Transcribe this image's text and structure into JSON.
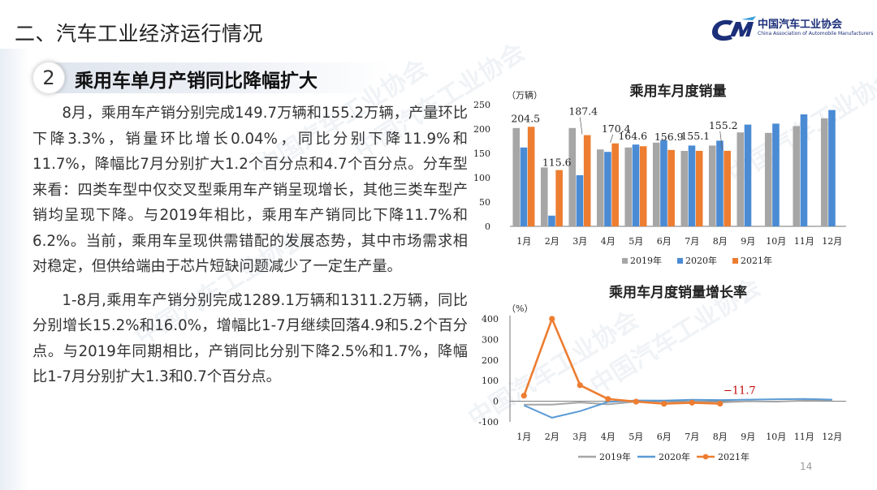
{
  "header": {
    "section_title": "二、汽车工业经济运行情况",
    "logo_cn": "中国汽车工业协会",
    "logo_en": "China Association of Automobile Manufacturers"
  },
  "subhead": {
    "number": "2",
    "title": "乘用车单月产销同比降幅扩大"
  },
  "body": {
    "para1": "8月，乘用车产销分别完成149.7万辆和155.2万辆，产量环比下降3.3%，销量环比增长0.04%，同比分别下降11.9%和11.7%，降幅比7月分别扩大1.2个百分点和4.7个百分点。分车型来看：四类车型中仅交叉型乘用车产销呈现增长，其他三类车型产销均呈现下降。与2019年相比，乘用车产销同比下降11.7%和6.2%。当前，乘用车呈现供需错配的发展态势，其中市场需求相对稳定，但供给端由于芯片短缺问题减少了一定生产量。",
    "para2": "1-8月,乘用车产销分别完成1289.1万辆和1311.2万辆，同比分别增长15.2%和16.0%，增幅比1-7月继续回落4.9和5.2个百分点。与2019年同期相比，产销同比分别下降2.5%和1.7%，降幅比1-7月分别扩大1.3和0.7个百分点。"
  },
  "watermark_text": "中国汽车工业协会",
  "page_number": "14",
  "chart_data": [
    {
      "type": "bar",
      "title": "乘用车月度销量",
      "ylabel": "（万辆）",
      "ylim": [
        0,
        250
      ],
      "yticks": [
        0,
        50,
        100,
        150,
        200,
        250
      ],
      "categories": [
        "1月",
        "2月",
        "3月",
        "4月",
        "5月",
        "6月",
        "7月",
        "8月",
        "9月",
        "10月",
        "11月",
        "12月"
      ],
      "series": [
        {
          "name": "2019年",
          "color": "#a6a6a6",
          "values": [
            202,
            121,
            202,
            158,
            162,
            172,
            155,
            166,
            193,
            192,
            206,
            222
          ]
        },
        {
          "name": "2020年",
          "color": "#4a8bd4",
          "values": [
            162,
            22,
            105,
            153,
            168,
            177,
            166,
            176,
            209,
            211,
            230,
            239
          ]
        },
        {
          "name": "2021年",
          "color": "#ed7d31",
          "values": [
            204.5,
            115.6,
            187.4,
            170.4,
            164.6,
            156.9,
            155.1,
            155.2,
            null,
            null,
            null,
            null
          ]
        }
      ],
      "data_labels": [
        "204.5",
        "115.6",
        "187.4",
        "170.4",
        "164.6",
        "156.9",
        "155.1",
        "155.2"
      ],
      "legend": "bottom"
    },
    {
      "type": "line",
      "title": "乘用车月度销量增长率",
      "ylabel": "（%）",
      "ylim": [
        -100,
        400
      ],
      "yticks": [
        -100,
        0,
        100,
        200,
        300,
        400
      ],
      "categories": [
        "1月",
        "2月",
        "3月",
        "4月",
        "5月",
        "6月",
        "7月",
        "8月",
        "9月",
        "10月",
        "11月",
        "12月"
      ],
      "series": [
        {
          "name": "2019年",
          "color": "#a6a6a6",
          "values": [
            -16,
            -16,
            -6,
            -15,
            -2,
            -7,
            -3,
            -6,
            0,
            -2,
            3,
            4
          ]
        },
        {
          "name": "2020年",
          "color": "#5b9bd5",
          "values": [
            -20,
            -80,
            -48,
            -3,
            4,
            3,
            7,
            6,
            8,
            10,
            11,
            8
          ]
        },
        {
          "name": "2021年",
          "color": "#ed7d31",
          "values": [
            27,
            400,
            78,
            11,
            -2,
            -12,
            -7,
            -11.7,
            null,
            null,
            null,
            null
          ]
        }
      ],
      "annotation": "-11.7",
      "legend": "bottom"
    }
  ]
}
